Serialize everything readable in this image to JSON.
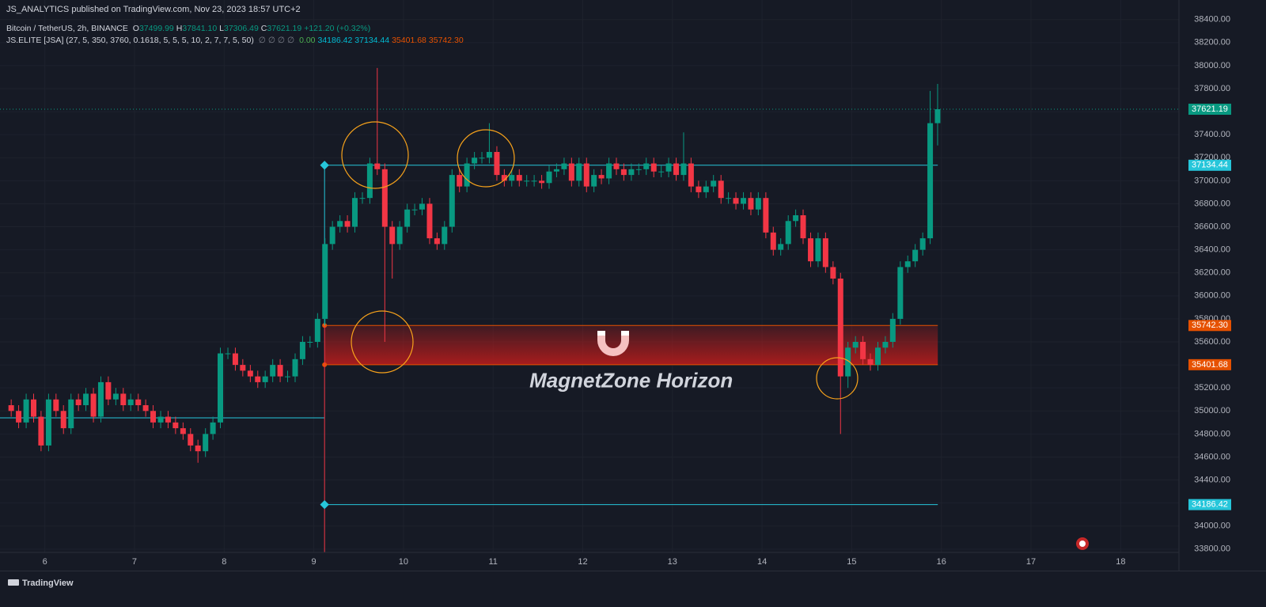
{
  "header": {
    "publisher": "JS_ANALYTICS published on TradingView.com, Nov 23, 2023 18:57 UTC+2",
    "symbol": "Bitcoin / TetherUS, 2h, BINANCE",
    "ohlc": [
      {
        "key": "O",
        "value": "37499.99"
      },
      {
        "key": "H",
        "value": "37841.10"
      },
      {
        "key": "L",
        "value": "37306.49"
      },
      {
        "key": "C",
        "value": "37621.19"
      },
      {
        "key": "",
        "value": "+121.20 (+0.32%)"
      }
    ],
    "ohlc_color": "#089981"
  },
  "indicator": {
    "name": "JS.ELITE [JSA] (27, 5, 350, 3760, 0.1618, 5, 5, 5, 10, 2, 7, 7, 5, 50)",
    "placeholders": "∅ ∅ ∅ ∅",
    "values": [
      {
        "text": "0.00",
        "color": "#4caf50"
      },
      {
        "text": "34186.42",
        "color": "#00bcd4"
      },
      {
        "text": "37134.44",
        "color": "#00bcd4"
      },
      {
        "text": "35401.68",
        "color": "#e65100"
      },
      {
        "text": "35742.30",
        "color": "#e65100"
      }
    ]
  },
  "footer": {
    "brand": "TradingView"
  },
  "chart_data": {
    "type": "candlestick",
    "up_color": "#089981",
    "down_color": "#f23645",
    "grid": true,
    "xlim": [
      5.5,
      18.65
    ],
    "ylim": [
      33620,
      38570
    ],
    "xticks": [
      6,
      7,
      8,
      9,
      10,
      11,
      12,
      13,
      14,
      15,
      16,
      17,
      18
    ],
    "yticks": [
      {
        "value": 33800,
        "label": "33800.00"
      },
      {
        "value": 34000,
        "label": "34000.00"
      },
      {
        "value": 34200,
        "label": "34200.00"
      },
      {
        "value": 34400,
        "label": "34400.00"
      },
      {
        "value": 34600,
        "label": "34600.00"
      },
      {
        "value": 34800,
        "label": "34800.00"
      },
      {
        "value": 35000,
        "label": "35000.00"
      },
      {
        "value": 35200,
        "label": "35200.00"
      },
      {
        "value": 35400,
        "label": "35400.00"
      },
      {
        "value": 35600,
        "label": "35600.00"
      },
      {
        "value": 35800,
        "label": "35800.00"
      },
      {
        "value": 36000,
        "label": "36000.00"
      },
      {
        "value": 36200,
        "label": "36200.00"
      },
      {
        "value": 36400,
        "label": "36400.00"
      },
      {
        "value": 36600,
        "label": "36600.00"
      },
      {
        "value": 36800,
        "label": "36800.00"
      },
      {
        "value": 37000,
        "label": "37000.00"
      },
      {
        "value": 37200,
        "label": "37200.00"
      },
      {
        "value": 37400,
        "label": "37400.00"
      },
      {
        "value": 37600,
        "label": "37600.00"
      },
      {
        "value": 37800,
        "label": "37800.00"
      },
      {
        "value": 38000,
        "label": "38000.00"
      },
      {
        "value": 38200,
        "label": "38200.00"
      },
      {
        "value": 38400,
        "label": "38400.00"
      }
    ],
    "x": [
      5.625,
      5.708,
      5.792,
      5.875,
      5.958,
      6.042,
      6.125,
      6.208,
      6.292,
      6.375,
      6.458,
      6.542,
      6.625,
      6.708,
      6.792,
      6.875,
      6.958,
      7.042,
      7.125,
      7.208,
      7.292,
      7.375,
      7.458,
      7.542,
      7.625,
      7.708,
      7.792,
      7.875,
      7.958,
      8.042,
      8.125,
      8.208,
      8.292,
      8.375,
      8.458,
      8.542,
      8.625,
      8.708,
      8.792,
      8.875,
      8.958,
      9.042,
      9.125,
      9.208,
      9.292,
      9.375,
      9.458,
      9.542,
      9.625,
      9.708,
      9.792,
      9.875,
      9.958,
      10.042,
      10.125,
      10.208,
      10.292,
      10.375,
      10.458,
      10.542,
      10.625,
      10.708,
      10.792,
      10.875,
      10.958,
      11.042,
      11.125,
      11.208,
      11.292,
      11.375,
      11.458,
      11.542,
      11.625,
      11.708,
      11.792,
      11.875,
      11.958,
      12.042,
      12.125,
      12.208,
      12.292,
      12.375,
      12.458,
      12.542,
      12.625,
      12.708,
      12.792,
      12.875,
      12.958,
      13.042,
      13.125,
      13.208,
      13.292,
      13.375,
      13.458,
      13.542,
      13.625,
      13.708,
      13.792,
      13.875,
      13.958,
      14.042,
      14.125,
      14.208,
      14.292,
      14.375,
      14.458,
      14.542,
      14.625,
      14.708,
      14.792,
      14.875,
      14.958,
      15.042,
      15.125,
      15.208,
      15.292,
      15.375,
      15.458,
      15.542,
      15.625,
      15.708,
      15.792,
      15.875,
      15.958
    ],
    "open": [
      35050,
      35000,
      34900,
      35100,
      34950,
      34700,
      35100,
      35000,
      34850,
      35100,
      35050,
      35150,
      34950,
      35250,
      35100,
      35150,
      35050,
      35100,
      35050,
      35000,
      34900,
      34950,
      34900,
      34850,
      34800,
      34700,
      34650,
      34800,
      34900,
      35500,
      35500,
      35400,
      35350,
      35300,
      35250,
      35300,
      35400,
      35300,
      35300,
      35450,
      35600,
      35600,
      35800,
      36450,
      36600,
      36650,
      36600,
      36850,
      36850,
      37150,
      37100,
      36600,
      36450,
      36600,
      36750,
      36750,
      36800,
      36500,
      36450,
      36600,
      37050,
      36950,
      37150,
      37200,
      37200,
      37250,
      37050,
      37000,
      37050,
      37000,
      37000,
      37000,
      36980,
      37080,
      37100,
      37150,
      37000,
      37150,
      36950,
      37050,
      37020,
      37150,
      37100,
      37050,
      37100,
      37100,
      37150,
      37080,
      37080,
      37150,
      37050,
      37150,
      36950,
      36900,
      36950,
      37000,
      36850,
      36850,
      36800,
      36850,
      36750,
      36850,
      36550,
      36400,
      36450,
      36650,
      36700,
      36500,
      36300,
      36500,
      36250,
      36150,
      35300,
      35550,
      35600,
      35450,
      35400,
      35550,
      35600,
      35800,
      36250,
      36300,
      36400,
      36500,
      37499.99
    ],
    "high": [
      35100,
      35050,
      35150,
      35150,
      35000,
      35150,
      35150,
      35050,
      35150,
      35150,
      35200,
      35200,
      35300,
      35300,
      35200,
      35200,
      35150,
      35150,
      35100,
      35050,
      35000,
      35000,
      34950,
      34900,
      34850,
      34750,
      34850,
      34950,
      35550,
      35550,
      35550,
      35450,
      35400,
      35350,
      35350,
      35450,
      35450,
      35350,
      35500,
      35650,
      35650,
      35850,
      36500,
      36650,
      36700,
      36700,
      36900,
      36900,
      37200,
      37980,
      37150,
      36650,
      36650,
      36800,
      36800,
      36850,
      36850,
      36550,
      36650,
      37100,
      37100,
      37200,
      37250,
      37250,
      37500,
      37300,
      37100,
      37100,
      37100,
      37050,
      37050,
      37050,
      37130,
      37150,
      37200,
      37200,
      37200,
      37200,
      37100,
      37100,
      37200,
      37200,
      37150,
      37150,
      37150,
      37200,
      37200,
      37130,
      37200,
      37200,
      37420,
      37200,
      37000,
      37000,
      37050,
      37050,
      36900,
      36900,
      36900,
      36900,
      36900,
      36900,
      36600,
      36500,
      36700,
      36750,
      36750,
      36550,
      36550,
      36550,
      36300,
      36200,
      35600,
      35650,
      35650,
      35500,
      35600,
      35650,
      35850,
      36300,
      36350,
      36450,
      36550,
      37780,
      37841.1
    ],
    "low": [
      34950,
      34850,
      34850,
      34900,
      34650,
      34650,
      34950,
      34800,
      34800,
      35000,
      35000,
      34900,
      34900,
      35050,
      35050,
      35000,
      35000,
      35000,
      34950,
      34850,
      34850,
      34850,
      34800,
      34750,
      34650,
      34550,
      34600,
      34750,
      34850,
      35450,
      35350,
      35300,
      35250,
      35200,
      35200,
      35250,
      35250,
      35250,
      35250,
      35400,
      35550,
      35550,
      35750,
      36400,
      36550,
      36550,
      36550,
      36800,
      36800,
      37050,
      35600,
      36150,
      36400,
      36550,
      36700,
      36700,
      36450,
      36400,
      36400,
      36550,
      36900,
      36900,
      37100,
      37150,
      37150,
      37000,
      36950,
      36950,
      36950,
      36950,
      36950,
      36930,
      36930,
      37030,
      37050,
      36950,
      36950,
      36900,
      36900,
      36970,
      36970,
      37050,
      37000,
      37000,
      37050,
      37050,
      37030,
      37030,
      37030,
      37000,
      37000,
      36900,
      36850,
      36850,
      36900,
      36800,
      36800,
      36750,
      36750,
      36700,
      36700,
      36500,
      36350,
      36350,
      36400,
      36600,
      36450,
      36250,
      36250,
      36200,
      36100,
      34800,
      35200,
      35500,
      35400,
      35350,
      35350,
      35500,
      35550,
      35750,
      36200,
      36250,
      36350,
      36450,
      37306.49
    ],
    "close": [
      35000,
      34900,
      35100,
      34950,
      34700,
      35100,
      35000,
      34850,
      35100,
      35050,
      35150,
      34950,
      35250,
      35100,
      35150,
      35050,
      35100,
      35050,
      35000,
      34900,
      34950,
      34900,
      34850,
      34800,
      34700,
      34650,
      34800,
      34900,
      35500,
      35500,
      35400,
      35350,
      35300,
      35250,
      35300,
      35400,
      35300,
      35300,
      35450,
      35600,
      35600,
      35800,
      36450,
      36600,
      36650,
      36600,
      36850,
      36850,
      37150,
      37100,
      36600,
      36450,
      36600,
      36750,
      36750,
      36800,
      36500,
      36450,
      36600,
      37050,
      36950,
      37150,
      37200,
      37200,
      37250,
      37050,
      37000,
      37050,
      37000,
      37000,
      37000,
      36980,
      37080,
      37100,
      37150,
      37000,
      37150,
      36950,
      37050,
      37020,
      37150,
      37100,
      37050,
      37100,
      37100,
      37150,
      37080,
      37080,
      37150,
      37050,
      37150,
      36950,
      36900,
      36950,
      37000,
      36850,
      36850,
      36800,
      36850,
      36750,
      36850,
      36550,
      36400,
      36450,
      36650,
      36700,
      36500,
      36300,
      36500,
      36250,
      36150,
      35300,
      35550,
      35600,
      35450,
      35400,
      35550,
      35600,
      35800,
      36250,
      36300,
      36400,
      36500,
      37499.99,
      37621.19
    ],
    "prior_level": {
      "value": 34940,
      "x": [
        5.5,
        9.12
      ],
      "color": "#26c6da"
    },
    "levels": [
      {
        "price": 37621.19,
        "color": "#089981",
        "dashed": true
      },
      {
        "price": 37134.44,
        "color": "#26c6da",
        "x": [
          9.12,
          15.96
        ],
        "marker": "diamond"
      },
      {
        "price": 34186.42,
        "color": "#26c6da",
        "x": [
          9.12,
          15.96
        ],
        "marker": "diamond"
      }
    ],
    "zone": {
      "label": "MagnetZone Horizon",
      "high": {
        "value": 35742.3,
        "label": "35742.30"
      },
      "low": 35401.68,
      "x": [
        9.12,
        15.96
      ],
      "color": "#b71c1c",
      "edge_color": "#e65100"
    }
  }
}
